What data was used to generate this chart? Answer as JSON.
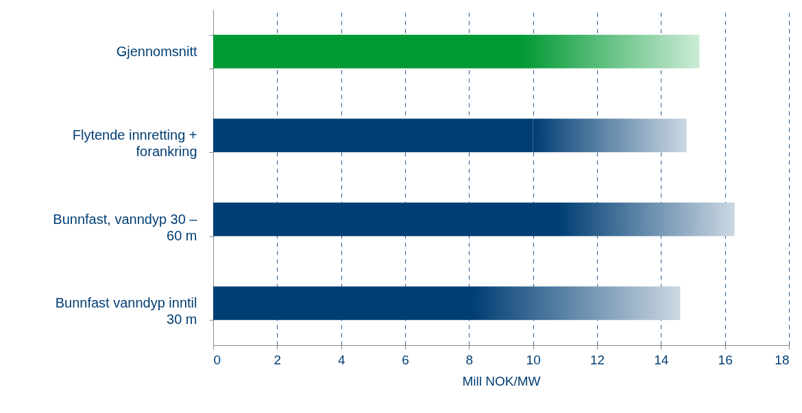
{
  "chart_data": {
    "type": "bar",
    "orientation": "horizontal",
    "stacked": true,
    "xlabel": "Mill NOK/MW",
    "categories": [
      "Gjennomsnitt",
      "Flytende innretting + forankring",
      "Bunnfast, vanndyp 30 – 60 m",
      "Bunnfast vanndyp inntil 30 m"
    ],
    "series": [
      {
        "colors": [
          "#009933",
          "#003e74",
          "#003e74",
          "#003e74"
        ],
        "values": [
          9.6,
          10.0,
          10.8,
          8.1
        ]
      },
      {
        "colors": [
          "#009933",
          "#003e74",
          "#003e74",
          "#003e74"
        ],
        "values": [
          5.6,
          4.8,
          5.5,
          6.5
        ]
      }
    ],
    "xlim": [
      0,
      18
    ],
    "xticks": [
      0,
      2,
      4,
      6,
      8,
      10,
      12,
      14,
      16,
      18
    ],
    "grid": "x"
  }
}
